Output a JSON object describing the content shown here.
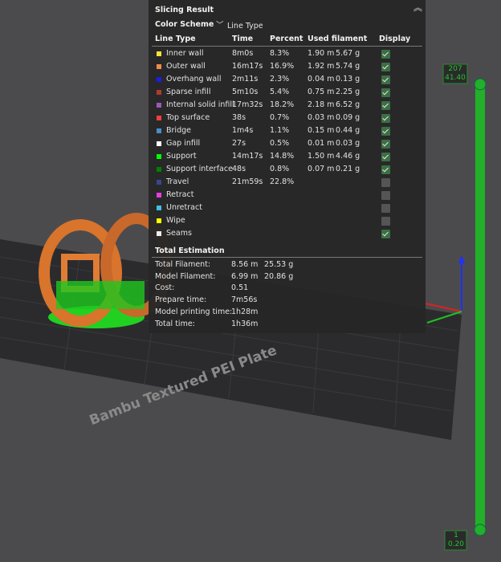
{
  "panel": {
    "title": "Slicing Result",
    "color_scheme_label": "Color Scheme",
    "color_scheme_value": "Line Type",
    "columns": [
      "Line Type",
      "Time",
      "Percent",
      "Used filament",
      "Display"
    ],
    "rows": [
      {
        "color": "#f2e23a",
        "name": "Inner wall",
        "time": "8m0s",
        "percent": "8.3%",
        "length": "1.90 m",
        "weight": "5.67 g",
        "display": true
      },
      {
        "color": "#f08a4b",
        "name": "Outer wall",
        "time": "16m17s",
        "percent": "16.9%",
        "length": "1.92 m",
        "weight": "5.74 g",
        "display": true
      },
      {
        "color": "#1c1ce0",
        "name": "Overhang wall",
        "time": "2m11s",
        "percent": "2.3%",
        "length": "0.04 m",
        "weight": "0.13 g",
        "display": true
      },
      {
        "color": "#b03a2e",
        "name": "Sparse infill",
        "time": "5m10s",
        "percent": "5.4%",
        "length": "0.75 m",
        "weight": "2.25 g",
        "display": true
      },
      {
        "color": "#9a58b8",
        "name": "Internal solid infill",
        "time": "17m32s",
        "percent": "18.2%",
        "length": "2.18 m",
        "weight": "6.52 g",
        "display": true
      },
      {
        "color": "#f04040",
        "name": "Top surface",
        "time": "38s",
        "percent": "0.7%",
        "length": "0.03 m",
        "weight": "0.09 g",
        "display": true
      },
      {
        "color": "#4a8ec8",
        "name": "Bridge",
        "time": "1m4s",
        "percent": "1.1%",
        "length": "0.15 m",
        "weight": "0.44 g",
        "display": true
      },
      {
        "color": "#ffffff",
        "name": "Gap infill",
        "time": "27s",
        "percent": "0.5%",
        "length": "0.01 m",
        "weight": "0.03 g",
        "display": true
      },
      {
        "color": "#00ff00",
        "name": "Support",
        "time": "14m17s",
        "percent": "14.8%",
        "length": "1.50 m",
        "weight": "4.46 g",
        "display": true
      },
      {
        "color": "#008000",
        "name": "Support interface",
        "time": "48s",
        "percent": "0.8%",
        "length": "0.07 m",
        "weight": "0.21 g",
        "display": true
      },
      {
        "color": "#38478c",
        "name": "Travel",
        "time": "21m59s",
        "percent": "22.8%",
        "display": false
      },
      {
        "color": "#e040e0",
        "name": "Retract",
        "display": false
      },
      {
        "color": "#40c0e0",
        "name": "Unretract",
        "display": false
      },
      {
        "color": "#ffff00",
        "name": "Wipe",
        "display": false
      },
      {
        "color": "#ececec",
        "name": "Seams",
        "display": true
      }
    ],
    "total_title": "Total Estimation",
    "totals": [
      {
        "label": "Total Filament:",
        "values": [
          "8.56 m",
          "25.53 g"
        ]
      },
      {
        "label": "Model Filament:",
        "values": [
          "6.99 m",
          "20.86 g"
        ]
      },
      {
        "label": "Cost:",
        "values": [
          "0.51"
        ]
      },
      {
        "label": "Prepare time:",
        "values": [
          "7m56s"
        ]
      },
      {
        "label": "Model printing time:",
        "values": [
          "1h28m"
        ]
      },
      {
        "label": "Total time:",
        "values": [
          "1h36m"
        ]
      }
    ]
  },
  "slider": {
    "top": [
      "207",
      "41.40"
    ],
    "bottom": [
      "1",
      "0.20"
    ]
  },
  "plate_label": "Bambu Textured PEI Plate"
}
